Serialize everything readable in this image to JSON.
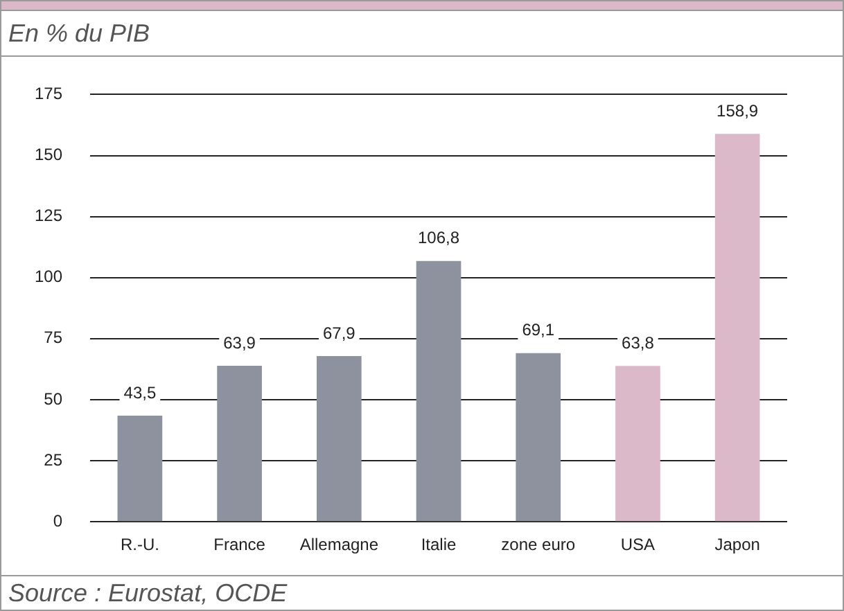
{
  "chart_data": {
    "type": "bar",
    "title": "En % du PIB",
    "categories": [
      "R.-U.",
      "France",
      "Allemagne",
      "Italie",
      "zone euro",
      "USA",
      "Japon"
    ],
    "values": [
      43.5,
      63.9,
      67.9,
      106.8,
      69.1,
      63.8,
      158.9
    ],
    "value_labels": [
      "43,5",
      "63,9",
      "67,9",
      "106,8",
      "69,1",
      "63,8",
      "158,9"
    ],
    "colors": [
      "#8e929e",
      "#8e929e",
      "#8e929e",
      "#8e929e",
      "#8e929e",
      "#dcb9c8",
      "#dcb9c8"
    ],
    "ylim": [
      0,
      175
    ],
    "yticks": [
      0,
      25,
      50,
      75,
      100,
      125,
      150,
      175
    ],
    "grid": "y",
    "legend": false,
    "annotations": [
      "Source : Eurostat, OCDE"
    ]
  }
}
